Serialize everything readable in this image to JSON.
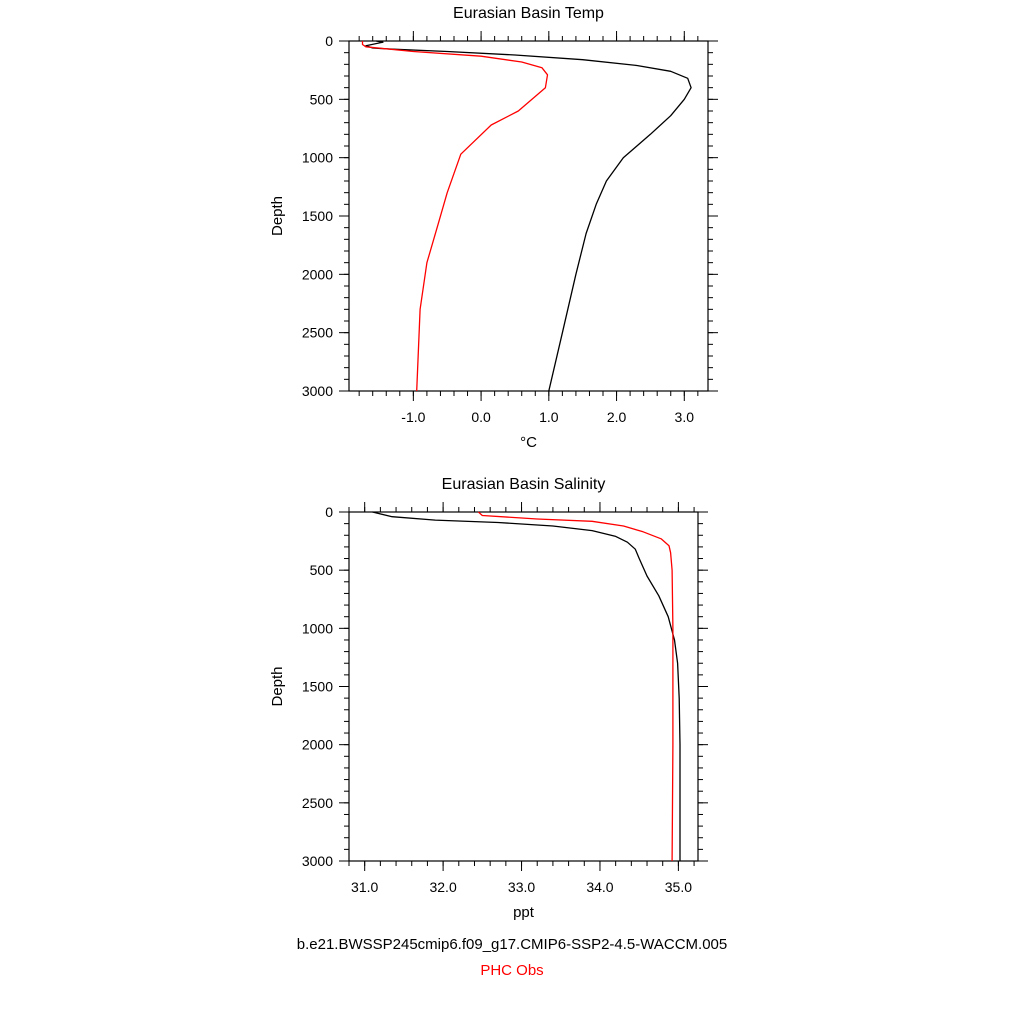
{
  "chart_data": [
    {
      "type": "line",
      "title": "Eurasian Basin Temp",
      "xlabel": "°C",
      "ylabel": "Depth",
      "xlim": [
        -1.95,
        3.35
      ],
      "ylim": [
        0,
        3000
      ],
      "y_inverted": true,
      "xticks": [
        -1.0,
        0.0,
        1.0,
        2.0,
        3.0
      ],
      "xtick_labels": [
        "-1.0",
        "0.0",
        "1.0",
        "2.0",
        "3.0"
      ],
      "x_minor_step": 0.2,
      "yticks": [
        0,
        500,
        1000,
        1500,
        2000,
        2500,
        3000
      ],
      "ytick_labels": [
        "0",
        "500",
        "1000",
        "1500",
        "2000",
        "2500",
        "3000"
      ],
      "y_minor_step": 100,
      "grid": false,
      "series": [
        {
          "color": "#000000",
          "points": [
            [
              -1.55,
              0
            ],
            [
              -1.45,
              10
            ],
            [
              -1.7,
              40
            ],
            [
              -1.6,
              60
            ],
            [
              -1.3,
              70
            ],
            [
              -0.5,
              90
            ],
            [
              0.5,
              120
            ],
            [
              1.5,
              160
            ],
            [
              2.3,
              210
            ],
            [
              2.8,
              260
            ],
            [
              3.05,
              320
            ],
            [
              3.1,
              400
            ],
            [
              3.0,
              500
            ],
            [
              2.8,
              640
            ],
            [
              2.5,
              800
            ],
            [
              2.1,
              1000
            ],
            [
              1.85,
              1200
            ],
            [
              1.7,
              1400
            ],
            [
              1.55,
              1650
            ],
            [
              1.4,
              2000
            ],
            [
              1.2,
              2500
            ],
            [
              1.0,
              3000
            ]
          ]
        },
        {
          "color": "#ff0000",
          "points": [
            [
              -1.75,
              0
            ],
            [
              -1.75,
              30
            ],
            [
              -1.7,
              50
            ],
            [
              -1.0,
              90
            ],
            [
              0.0,
              130
            ],
            [
              0.6,
              180
            ],
            [
              0.9,
              230
            ],
            [
              0.98,
              290
            ],
            [
              0.95,
              400
            ],
            [
              0.55,
              600
            ],
            [
              0.15,
              720
            ],
            [
              -0.3,
              970
            ],
            [
              -0.5,
              1300
            ],
            [
              -0.65,
              1600
            ],
            [
              -0.8,
              1900
            ],
            [
              -0.9,
              2300
            ],
            [
              -0.95,
              3000
            ]
          ]
        }
      ]
    },
    {
      "type": "line",
      "title": "Eurasian Basin Salinity",
      "xlabel": "ppt",
      "ylabel": "Depth",
      "xlim": [
        30.8,
        35.25
      ],
      "ylim": [
        0,
        3000
      ],
      "y_inverted": true,
      "xticks": [
        31.0,
        32.0,
        33.0,
        34.0,
        35.0
      ],
      "xtick_labels": [
        "31.0",
        "32.0",
        "33.0",
        "34.0",
        "35.0"
      ],
      "x_minor_step": 0.2,
      "yticks": [
        0,
        500,
        1000,
        1500,
        2000,
        2500,
        3000
      ],
      "ytick_labels": [
        "0",
        "500",
        "1000",
        "1500",
        "2000",
        "2500",
        "3000"
      ],
      "y_minor_step": 100,
      "grid": false,
      "series": [
        {
          "color": "#000000",
          "points": [
            [
              31.1,
              0
            ],
            [
              31.35,
              40
            ],
            [
              31.9,
              70
            ],
            [
              32.7,
              90
            ],
            [
              33.4,
              120
            ],
            [
              33.9,
              160
            ],
            [
              34.2,
              210
            ],
            [
              34.35,
              260
            ],
            [
              34.45,
              320
            ],
            [
              34.5,
              400
            ],
            [
              34.6,
              550
            ],
            [
              34.75,
              720
            ],
            [
              34.87,
              900
            ],
            [
              34.95,
              1100
            ],
            [
              34.99,
              1300
            ],
            [
              35.01,
              1600
            ],
            [
              35.02,
              2000
            ],
            [
              35.02,
              3000
            ]
          ]
        },
        {
          "color": "#ff0000",
          "points": [
            [
              32.45,
              0
            ],
            [
              32.5,
              30
            ],
            [
              33.2,
              60
            ],
            [
              33.9,
              80
            ],
            [
              34.3,
              120
            ],
            [
              34.55,
              170
            ],
            [
              34.78,
              230
            ],
            [
              34.88,
              290
            ],
            [
              34.9,
              350
            ],
            [
              34.92,
              500
            ],
            [
              34.93,
              1000
            ],
            [
              34.93,
              2000
            ],
            [
              34.92,
              3000
            ]
          ]
        }
      ]
    }
  ],
  "captions": {
    "case_name": "b.e21.BWSSP245cmip6.f09_g17.CMIP6-SSP2-4.5-WACCM.005",
    "obs_name": "PHC Obs"
  }
}
